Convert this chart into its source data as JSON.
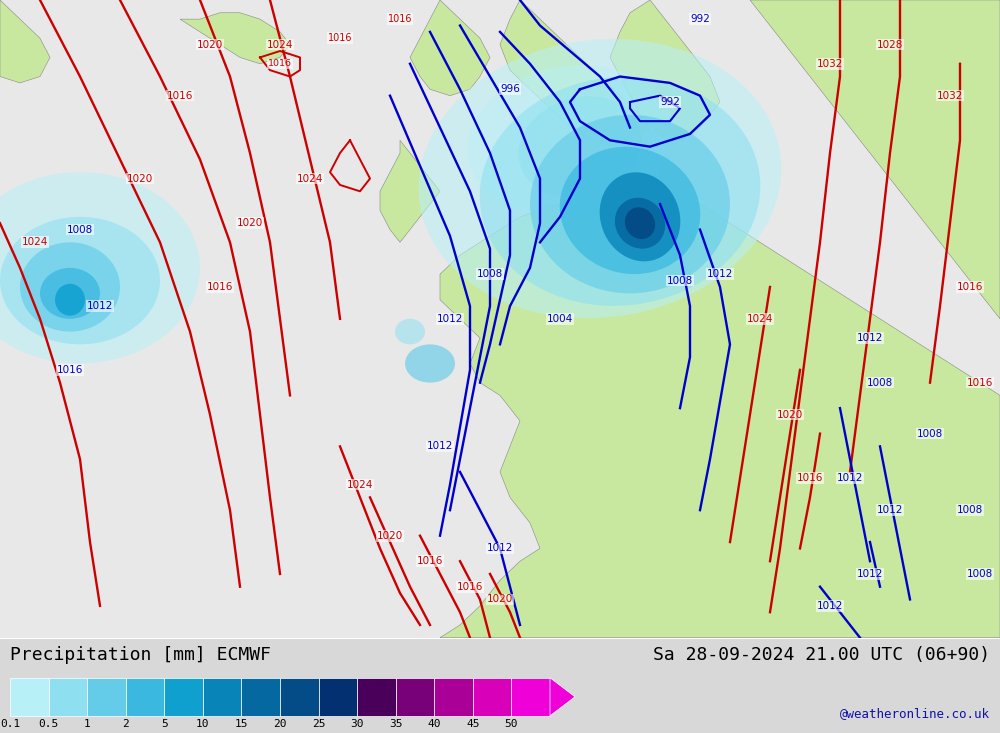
{
  "title_left": "Precipitation [mm] ECMWF",
  "title_right": "Sa 28-09-2024 21.00 UTC (06+90)",
  "credit": "@weatheronline.co.uk",
  "colorbar_labels": [
    "0.1",
    "0.5",
    "1",
    "2",
    "5",
    "10",
    "15",
    "20",
    "25",
    "30",
    "35",
    "40",
    "45",
    "50"
  ],
  "colorbar_colors": [
    "#b8f0f8",
    "#8ee0f0",
    "#64cce8",
    "#3ab8e0",
    "#10a0d0",
    "#0884b8",
    "#0668a0",
    "#044c88",
    "#023070",
    "#4a005a",
    "#780078",
    "#aa0098",
    "#d800b8",
    "#f000d8"
  ],
  "land_color": "#c8e8a0",
  "sea_color": "#e8e8e8",
  "red": "#cc0000",
  "blue": "#0000cc",
  "fig_width": 10.0,
  "fig_height": 7.33,
  "dpi": 100,
  "bottom_bg": "#d8d8d8"
}
